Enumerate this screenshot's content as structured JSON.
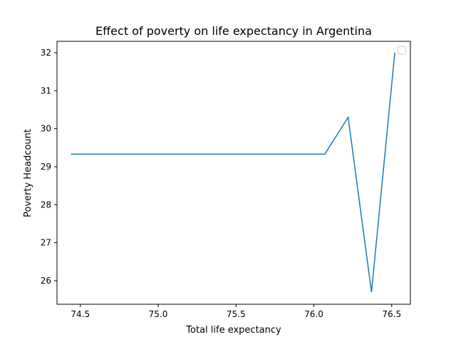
{
  "chart_data": {
    "type": "line",
    "title": "Effect of poverty on life expectancy in Argentina",
    "xlabel": "Total life expectancy",
    "ylabel": "Poverty Headcount",
    "xlim": [
      74.35,
      76.62
    ],
    "ylim": [
      25.38,
      32.3
    ],
    "xticks": [
      74.5,
      75.0,
      75.5,
      76.0,
      76.5
    ],
    "xtick_labels": [
      "74.5",
      "75.0",
      "75.5",
      "76.0",
      "76.5"
    ],
    "yticks": [
      26,
      27,
      28,
      29,
      30,
      31,
      32
    ],
    "ytick_labels": [
      "26",
      "27",
      "28",
      "29",
      "30",
      "31",
      "32"
    ],
    "grid": false,
    "legend": "top-right (empty)",
    "series": [
      {
        "color": "#1f77b4",
        "x": [
          74.44,
          76.07,
          76.22,
          76.37,
          76.52
        ],
        "y": [
          29.33,
          29.33,
          30.3,
          25.7,
          32.0
        ]
      }
    ]
  }
}
